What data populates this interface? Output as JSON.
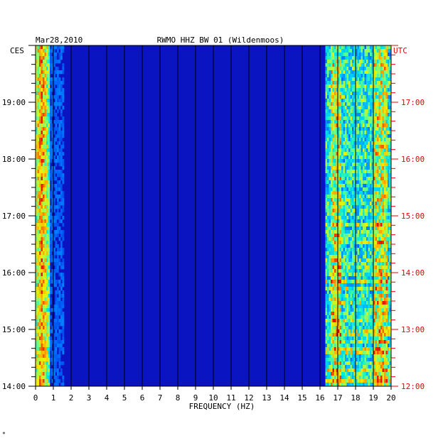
{
  "header": {
    "date": "Mar28,2010",
    "station": "RWMO HHZ BW 01 (Wildenmoos)"
  },
  "chart_data": {
    "type": "heatmap",
    "title": "RWMO HHZ BW 01 (Wildenmoos)",
    "date": "Mar28,2010",
    "xlabel": "FREQUENCY (HZ)",
    "xlim": [
      0,
      20
    ],
    "x_ticks": [
      "0",
      "1",
      "2",
      "3",
      "4",
      "5",
      "6",
      "7",
      "8",
      "9",
      "10",
      "11",
      "12",
      "13",
      "14",
      "15",
      "16",
      "17",
      "18",
      "19",
      "20"
    ],
    "left_axis": {
      "label": "CES",
      "ticks": [
        "14:00",
        "15:00",
        "16:00",
        "17:00",
        "18:00",
        "19:00"
      ],
      "ylim_hours": [
        14,
        20
      ]
    },
    "right_axis": {
      "label": "UTC",
      "ticks": [
        "12:00",
        "13:00",
        "14:00",
        "15:00",
        "16:00",
        "17:00"
      ],
      "color": "#ee0000"
    },
    "grid": "vertical lines at each integer frequency",
    "colors": {
      "background": "#0a14c0",
      "grid": "#000000",
      "left_text": "#000000",
      "right_text": "#ee0000"
    },
    "bands": [
      {
        "from_hz": 0,
        "to_hz": 0.8,
        "intensity": "high (yellow-red)"
      },
      {
        "from_hz": 16.3,
        "to_hz": 20,
        "intensity": "medium-high (cyan-yellow)"
      }
    ]
  },
  "footer": {
    "mark": "*"
  }
}
